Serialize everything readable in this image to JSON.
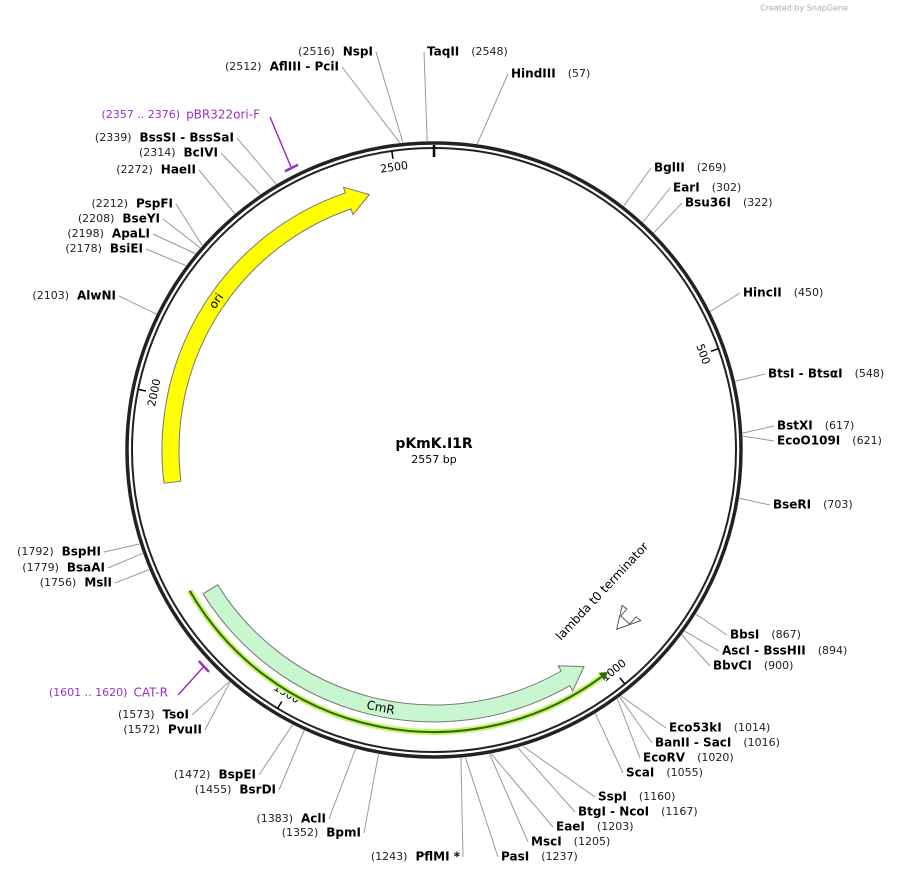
{
  "credit": "Created by SnapGene",
  "plasmid": {
    "name": "pKmK.I1R",
    "length": 2557,
    "length_label": "2557 bp"
  },
  "ruler_ticks": [
    500,
    1000,
    1500,
    2000,
    2500
  ],
  "sites": [
    {
      "name": "TaqII",
      "position": 2548,
      "position_label": "(2548)"
    },
    {
      "name": "HindIII",
      "position": 57,
      "position_label": "(57)"
    },
    {
      "name": "BglII",
      "position": 269,
      "position_label": "(269)"
    },
    {
      "name": "EarI",
      "position": 302,
      "position_label": "(302)"
    },
    {
      "name": "Bsu36I",
      "position": 322,
      "position_label": "(322)"
    },
    {
      "name": "HincII",
      "position": 450,
      "position_label": "(450)"
    },
    {
      "name": "BtsI - BtsαI",
      "position": 548,
      "position_label": "(548)"
    },
    {
      "name": "BstXI",
      "position": 617,
      "position_label": "(617)"
    },
    {
      "name": "EcoO109I",
      "position": 621,
      "position_label": "(621)"
    },
    {
      "name": "BseRI",
      "position": 703,
      "position_label": "(703)"
    },
    {
      "name": "BbsI",
      "position": 867,
      "position_label": "(867)"
    },
    {
      "name": "AscI - BssHII",
      "position": 894,
      "position_label": "(894)"
    },
    {
      "name": "BbvCI",
      "position": 900,
      "position_label": "(900)"
    },
    {
      "name": "Eco53kI",
      "position": 1014,
      "position_label": "(1014)"
    },
    {
      "name": "BanII - SacI",
      "position": 1016,
      "position_label": "(1016)"
    },
    {
      "name": "EcoRV",
      "position": 1020,
      "position_label": "(1020)"
    },
    {
      "name": "ScaI",
      "position": 1055,
      "position_label": "(1055)"
    },
    {
      "name": "SspI",
      "position": 1160,
      "position_label": "(1160)"
    },
    {
      "name": "BtgI - NcoI",
      "position": 1167,
      "position_label": "(1167)"
    },
    {
      "name": "EaeI",
      "position": 1203,
      "position_label": "(1203)"
    },
    {
      "name": "MscI",
      "position": 1205,
      "position_label": "(1205)"
    },
    {
      "name": "PasI",
      "position": 1237,
      "position_label": "(1237)"
    },
    {
      "name": "PflMI *",
      "position": 1243,
      "position_label": "(1243)"
    },
    {
      "name": "BpmI",
      "position": 1352,
      "position_label": "(1352)"
    },
    {
      "name": "AclI",
      "position": 1383,
      "position_label": "(1383)"
    },
    {
      "name": "BsrDI",
      "position": 1455,
      "position_label": "(1455)"
    },
    {
      "name": "BspEI",
      "position": 1472,
      "position_label": "(1472)"
    },
    {
      "name": "PvuII",
      "position": 1572,
      "position_label": "(1572)"
    },
    {
      "name": "TsoI",
      "position": 1573,
      "position_label": "(1573)"
    },
    {
      "name": "MslI",
      "position": 1756,
      "position_label": "(1756)"
    },
    {
      "name": "BsaAI",
      "position": 1779,
      "position_label": "(1779)"
    },
    {
      "name": "BspHI",
      "position": 1792,
      "position_label": "(1792)"
    },
    {
      "name": "AlwNI",
      "position": 2103,
      "position_label": "(2103)"
    },
    {
      "name": "BsiEI",
      "position": 2178,
      "position_label": "(2178)"
    },
    {
      "name": "ApaLI",
      "position": 2198,
      "position_label": "(2198)"
    },
    {
      "name": "BseYI",
      "position": 2208,
      "position_label": "(2208)"
    },
    {
      "name": "PspFI",
      "position": 2212,
      "position_label": "(2212)"
    },
    {
      "name": "HaeII",
      "position": 2272,
      "position_label": "(2272)"
    },
    {
      "name": "BcIVI",
      "position": 2314,
      "position_label": "(2314)"
    },
    {
      "name": "BssSI - BssSaI",
      "position": 2339,
      "position_label": "(2339)"
    },
    {
      "name": "AflIII - PciI",
      "position": 2512,
      "position_label": "(2512)"
    },
    {
      "name": "NspI",
      "position": 2516,
      "position_label": "(2516)"
    }
  ],
  "features": [
    {
      "name": "ori",
      "start": 1868,
      "end": 2456,
      "direction": "forward",
      "color": "#ffff00"
    },
    {
      "name": "CmR",
      "start": 1032,
      "end": 1691,
      "direction": "reverse",
      "color": "#c8f7cf"
    },
    {
      "name": "lambda t0 terminator",
      "start": 935,
      "end": 955,
      "direction": "forward",
      "color": "#ffffff"
    },
    {
      "start": 1008,
      "end": 1705,
      "direction": "reverse",
      "color": "#2e6b00",
      "style": "line"
    }
  ],
  "primers": [
    {
      "name": "pBR322ori-F",
      "start": 2357,
      "end": 2376,
      "range_label": "(2357 .. 2376)"
    },
    {
      "name": "CAT-R",
      "start": 1601,
      "end": 1620,
      "range_label": "(1601 .. 1620)"
    }
  ]
}
